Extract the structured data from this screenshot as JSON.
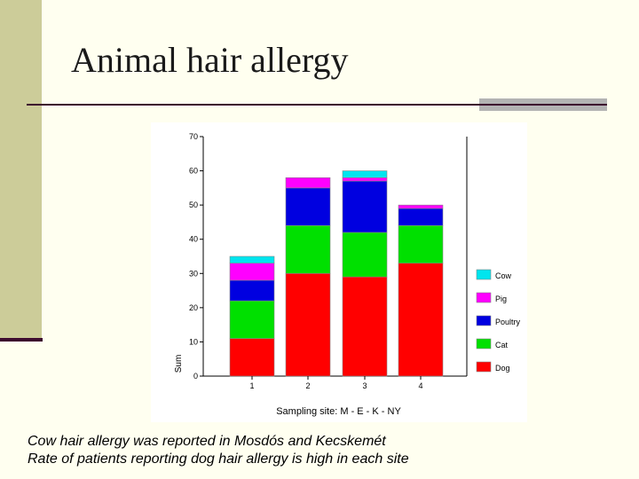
{
  "slide": {
    "title": "Animal hair allergy",
    "caption_lines": [
      "Cow hair allergy was reported in Mosdós and Kecskemét",
      "Rate of patients reporting dog hair allergy is high in each site"
    ]
  },
  "colors": {
    "background": "#fffff0",
    "left_bar": "#cccc99",
    "rule": "#3d0a2e"
  },
  "chart_data": {
    "type": "bar",
    "stacked": true,
    "categories": [
      "1",
      "2",
      "3",
      "4"
    ],
    "xlabel": "Sampling site: M - E - K - NY",
    "ylabel": "Sum",
    "ylim": [
      0,
      70
    ],
    "yticks": [
      "0",
      "10",
      "20",
      "30",
      "40",
      "50",
      "60",
      "70"
    ],
    "grid": false,
    "legend_position": "right",
    "series": [
      {
        "name": "Dog",
        "color": "#ff0000",
        "values": [
          11,
          30,
          29,
          33
        ]
      },
      {
        "name": "Cat",
        "color": "#00e000",
        "values": [
          11,
          14,
          13,
          11
        ]
      },
      {
        "name": "Poultry",
        "color": "#0000e0",
        "values": [
          6,
          11,
          15,
          5
        ]
      },
      {
        "name": "Pig",
        "color": "#ff00ff",
        "values": [
          5,
          3,
          1,
          1
        ]
      },
      {
        "name": "Cow",
        "color": "#00e5ee",
        "values": [
          2,
          0,
          2,
          0
        ]
      }
    ]
  }
}
